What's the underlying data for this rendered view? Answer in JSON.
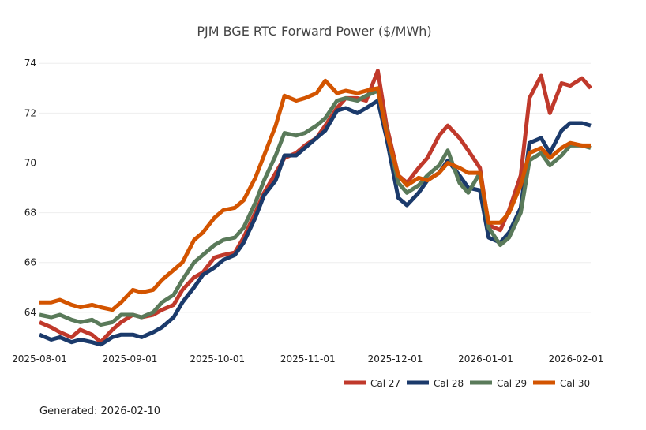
{
  "chart_data": {
    "type": "line",
    "title": "PJM BGE RTC Forward Power ($/MWh)",
    "xlabel": "",
    "ylabel": "",
    "x_ticks": [
      "2025-08-01",
      "2025-09-01",
      "2025-10-01",
      "2025-11-01",
      "2025-12-01",
      "2026-01-01",
      "2026-02-01"
    ],
    "y_ticks": [
      64,
      66,
      68,
      70,
      72,
      74
    ],
    "xlim": [
      "2025-08-01",
      "2026-02-06"
    ],
    "ylim": [
      62.6,
      74.8
    ],
    "grid": "horizontal",
    "legend_position": "bottom-right",
    "footer": "Generated: 2026-02-10",
    "x": [
      "2025-08-01",
      "2025-08-05",
      "2025-08-08",
      "2025-08-12",
      "2025-08-15",
      "2025-08-19",
      "2025-08-22",
      "2025-08-26",
      "2025-08-29",
      "2025-09-02",
      "2025-09-05",
      "2025-09-09",
      "2025-09-12",
      "2025-09-16",
      "2025-09-19",
      "2025-09-23",
      "2025-09-26",
      "2025-09-30",
      "2025-10-03",
      "2025-10-07",
      "2025-10-10",
      "2025-10-14",
      "2025-10-17",
      "2025-10-21",
      "2025-10-24",
      "2025-10-28",
      "2025-10-31",
      "2025-11-04",
      "2025-11-07",
      "2025-11-11",
      "2025-11-14",
      "2025-11-18",
      "2025-11-21",
      "2025-11-25",
      "2025-11-28",
      "2025-12-02",
      "2025-12-05",
      "2025-12-09",
      "2025-12-12",
      "2025-12-16",
      "2025-12-19",
      "2025-12-23",
      "2025-12-26",
      "2025-12-30",
      "2026-01-02",
      "2026-01-06",
      "2026-01-09",
      "2026-01-13",
      "2026-01-16",
      "2026-01-20",
      "2026-01-23",
      "2026-01-27",
      "2026-01-30",
      "2026-02-03",
      "2026-02-06"
    ],
    "series": [
      {
        "name": "Cal 27",
        "color": "#c0392b",
        "values": [
          63.6,
          63.4,
          63.2,
          63.0,
          63.3,
          63.1,
          62.8,
          63.3,
          63.6,
          63.9,
          63.8,
          63.9,
          64.1,
          64.3,
          64.9,
          65.4,
          65.6,
          66.2,
          66.3,
          66.4,
          67.0,
          68.0,
          68.8,
          69.6,
          70.2,
          70.4,
          70.7,
          71.0,
          71.5,
          72.2,
          72.6,
          72.6,
          72.5,
          73.7,
          71.5,
          69.5,
          69.2,
          69.8,
          70.2,
          71.1,
          71.5,
          71.0,
          70.5,
          69.8,
          67.5,
          67.3,
          68.1,
          69.5,
          72.6,
          73.5,
          72.0,
          73.2,
          73.1,
          73.4,
          73.0
        ]
      },
      {
        "name": "Cal 28",
        "color": "#1b3a6b",
        "values": [
          63.1,
          62.9,
          63.0,
          62.8,
          62.9,
          62.8,
          62.7,
          63.0,
          63.1,
          63.1,
          63.0,
          63.2,
          63.4,
          63.8,
          64.4,
          65.0,
          65.5,
          65.8,
          66.1,
          66.3,
          66.8,
          67.8,
          68.7,
          69.3,
          70.3,
          70.3,
          70.6,
          71.0,
          71.3,
          72.1,
          72.2,
          72.0,
          72.2,
          72.5,
          71.0,
          68.6,
          68.3,
          68.8,
          69.3,
          69.6,
          70.1,
          69.5,
          69.0,
          68.9,
          67.0,
          66.8,
          67.2,
          68.2,
          70.8,
          71.0,
          70.4,
          71.3,
          71.6,
          71.6,
          71.5
        ]
      },
      {
        "name": "Cal 29",
        "color": "#5a7a5a",
        "values": [
          63.9,
          63.8,
          63.9,
          63.7,
          63.6,
          63.7,
          63.5,
          63.6,
          63.9,
          63.9,
          63.8,
          64.0,
          64.4,
          64.7,
          65.3,
          66.0,
          66.3,
          66.7,
          66.9,
          67.0,
          67.4,
          68.4,
          69.3,
          70.3,
          71.2,
          71.1,
          71.2,
          71.5,
          71.8,
          72.5,
          72.6,
          72.5,
          72.7,
          72.9,
          71.3,
          69.2,
          68.8,
          69.1,
          69.5,
          69.9,
          70.5,
          69.2,
          68.8,
          69.6,
          67.4,
          66.7,
          67.0,
          68.0,
          70.1,
          70.4,
          69.9,
          70.3,
          70.7,
          70.7,
          70.6
        ]
      },
      {
        "name": "Cal 30",
        "color": "#d35400",
        "values": [
          64.4,
          64.4,
          64.5,
          64.3,
          64.2,
          64.3,
          64.2,
          64.1,
          64.4,
          64.9,
          64.8,
          64.9,
          65.3,
          65.7,
          66.0,
          66.9,
          67.2,
          67.8,
          68.1,
          68.2,
          68.5,
          69.4,
          70.3,
          71.5,
          72.7,
          72.5,
          72.6,
          72.8,
          73.3,
          72.8,
          72.9,
          72.8,
          72.9,
          73.0,
          71.2,
          69.5,
          69.1,
          69.4,
          69.3,
          69.6,
          70.0,
          69.8,
          69.6,
          69.6,
          67.6,
          67.6,
          68.0,
          69.1,
          70.4,
          70.6,
          70.2,
          70.6,
          70.8,
          70.7,
          70.7
        ]
      }
    ]
  }
}
